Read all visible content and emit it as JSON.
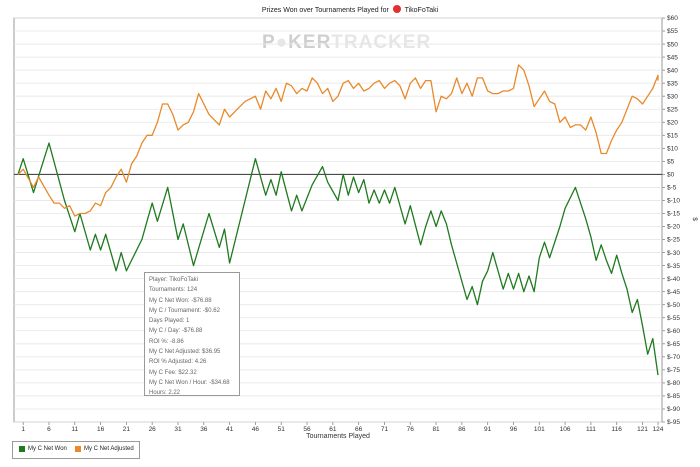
{
  "title": {
    "prefix": "Prizes Won over Tournaments Played for",
    "player": "TikoFoTaki"
  },
  "watermark": {
    "part1": "P",
    "part2": "KER",
    "part3": "TRACKER"
  },
  "tooltip": [
    "Player: TikoFoTaki",
    "Tournaments: 124",
    "My C Net Won: -$76.88",
    "My C / Tournament: -$0.62",
    "Days Played: 1",
    "My C / Day: -$76.88",
    "ROI %: -8.86",
    "My C Net Adjusted: $36.95",
    "ROI % Adjusted: 4.26",
    "My C Fee: $22.32",
    "My C Net Won / Hour: -$34.68",
    "Hours: 2.22"
  ],
  "legend": [
    {
      "label": "My C Net Won",
      "color": "#1f7a1f"
    },
    {
      "label": "My C Net Adjusted",
      "color": "#e8892b"
    }
  ],
  "chart_data": {
    "type": "line",
    "title": "Prizes Won over Tournaments Played for TikoFoTaki",
    "xlabel": "Tournaments Played",
    "ylabel": "$",
    "xlim": [
      0,
      124
    ],
    "ylim": [
      -95,
      60
    ],
    "x_ticks": [
      1,
      6,
      11,
      16,
      21,
      26,
      31,
      36,
      41,
      46,
      51,
      56,
      61,
      66,
      71,
      76,
      81,
      86,
      91,
      96,
      101,
      106,
      111,
      116,
      121,
      124
    ],
    "y_ticks": [
      "$60",
      "$55",
      "$50",
      "$45",
      "$40",
      "$35",
      "$30",
      "$25",
      "$20",
      "$15",
      "$10",
      "$5",
      "$0",
      "$-5",
      "$-10",
      "$-15",
      "$-20",
      "$-25",
      "$-30",
      "$-35",
      "$-40",
      "$-45",
      "$-50",
      "$-55",
      "$-60",
      "$-65",
      "$-70",
      "$-75",
      "$-80",
      "$-85",
      "$-90",
      "$-95"
    ],
    "y_tick_values": [
      60,
      55,
      50,
      45,
      40,
      35,
      30,
      25,
      20,
      15,
      10,
      5,
      0,
      -5,
      -10,
      -15,
      -20,
      -25,
      -30,
      -35,
      -40,
      -45,
      -50,
      -55,
      -60,
      -65,
      -70,
      -75,
      -80,
      -85,
      -90,
      -95
    ],
    "zero_line": true,
    "grid": "horizontal",
    "series": [
      {
        "name": "My C Net Won",
        "color": "#1f7a1f",
        "points": [
          [
            0,
            0
          ],
          [
            1,
            6
          ],
          [
            3,
            -7
          ],
          [
            6,
            12
          ],
          [
            9,
            -10
          ],
          [
            11,
            -22
          ],
          [
            12,
            -15
          ],
          [
            14,
            -29
          ],
          [
            15,
            -23
          ],
          [
            16,
            -29
          ],
          [
            17,
            -23
          ],
          [
            19,
            -37
          ],
          [
            20,
            -30
          ],
          [
            21,
            -37
          ],
          [
            22,
            -33
          ],
          [
            24,
            -25
          ],
          [
            25,
            -18
          ],
          [
            26,
            -11
          ],
          [
            27,
            -18
          ],
          [
            29,
            -5
          ],
          [
            31,
            -25
          ],
          [
            32,
            -19
          ],
          [
            34,
            -35
          ],
          [
            37,
            -15
          ],
          [
            39,
            -28
          ],
          [
            40,
            -21
          ],
          [
            41,
            -34
          ],
          [
            46,
            6
          ],
          [
            48,
            -8
          ],
          [
            49,
            -2
          ],
          [
            50,
            -8
          ],
          [
            51,
            1
          ],
          [
            53,
            -14
          ],
          [
            54,
            -8
          ],
          [
            55,
            -14
          ],
          [
            57,
            -4
          ],
          [
            59,
            3
          ],
          [
            60,
            -3
          ],
          [
            62,
            -10
          ],
          [
            63,
            0
          ],
          [
            64,
            -8
          ],
          [
            65,
            -1
          ],
          [
            66,
            -7
          ],
          [
            67,
            -2
          ],
          [
            68,
            -11
          ],
          [
            69,
            -6
          ],
          [
            70,
            -11
          ],
          [
            71,
            -6
          ],
          [
            72,
            -11
          ],
          [
            73,
            -5
          ],
          [
            75,
            -19
          ],
          [
            76,
            -12
          ],
          [
            78,
            -27
          ],
          [
            79,
            -20
          ],
          [
            80,
            -14
          ],
          [
            81,
            -20
          ],
          [
            82,
            -14
          ],
          [
            83,
            -19
          ],
          [
            84,
            -27
          ],
          [
            87,
            -48
          ],
          [
            88,
            -43
          ],
          [
            89,
            -50
          ],
          [
            90,
            -41
          ],
          [
            91,
            -37
          ],
          [
            92,
            -30
          ],
          [
            94,
            -44
          ],
          [
            95,
            -38
          ],
          [
            96,
            -44
          ],
          [
            97,
            -38
          ],
          [
            98,
            -45
          ],
          [
            99,
            -39
          ],
          [
            100,
            -45
          ],
          [
            101,
            -32
          ],
          [
            102,
            -26
          ],
          [
            103,
            -32
          ],
          [
            105,
            -20
          ],
          [
            106,
            -13
          ],
          [
            108,
            -5
          ],
          [
            110,
            -17
          ],
          [
            111,
            -24
          ],
          [
            112,
            -33
          ],
          [
            113,
            -27
          ],
          [
            114,
            -33
          ],
          [
            115,
            -38
          ],
          [
            116,
            -31
          ],
          [
            117,
            -38
          ],
          [
            118,
            -44
          ],
          [
            119,
            -53
          ],
          [
            120,
            -48
          ],
          [
            121,
            -58
          ],
          [
            122,
            -69
          ],
          [
            123,
            -63
          ],
          [
            124,
            -77
          ]
        ]
      },
      {
        "name": "My C Net Adjusted",
        "color": "#e8892b",
        "points": [
          [
            0,
            0
          ],
          [
            1,
            2
          ],
          [
            3,
            -5
          ],
          [
            4,
            -1
          ],
          [
            6,
            -8
          ],
          [
            7,
            -11
          ],
          [
            8,
            -11
          ],
          [
            9,
            -13
          ],
          [
            10,
            -12
          ],
          [
            11,
            -16
          ],
          [
            12,
            -15
          ],
          [
            13,
            -15
          ],
          [
            14,
            -14
          ],
          [
            15,
            -11
          ],
          [
            16,
            -12
          ],
          [
            17,
            -7
          ],
          [
            18,
            -5
          ],
          [
            19,
            -1
          ],
          [
            20,
            2
          ],
          [
            21,
            -3
          ],
          [
            22,
            4
          ],
          [
            23,
            7
          ],
          [
            24,
            12
          ],
          [
            25,
            15
          ],
          [
            26,
            15
          ],
          [
            27,
            20
          ],
          [
            28,
            27
          ],
          [
            29,
            27
          ],
          [
            30,
            23
          ],
          [
            31,
            17
          ],
          [
            32,
            19
          ],
          [
            33,
            20
          ],
          [
            34,
            24
          ],
          [
            35,
            31
          ],
          [
            36,
            27
          ],
          [
            37,
            23
          ],
          [
            38,
            21
          ],
          [
            39,
            19
          ],
          [
            40,
            25
          ],
          [
            41,
            22
          ],
          [
            42,
            24
          ],
          [
            43,
            26
          ],
          [
            44,
            28
          ],
          [
            45,
            29
          ],
          [
            46,
            30
          ],
          [
            47,
            25
          ],
          [
            48,
            32
          ],
          [
            49,
            29
          ],
          [
            50,
            33
          ],
          [
            51,
            28
          ],
          [
            52,
            35
          ],
          [
            53,
            34
          ],
          [
            54,
            31
          ],
          [
            55,
            33
          ],
          [
            56,
            32
          ],
          [
            57,
            37
          ],
          [
            58,
            35
          ],
          [
            59,
            31
          ],
          [
            60,
            33
          ],
          [
            61,
            28
          ],
          [
            62,
            30
          ],
          [
            63,
            35
          ],
          [
            64,
            36
          ],
          [
            65,
            33
          ],
          [
            66,
            35
          ],
          [
            67,
            32
          ],
          [
            68,
            33
          ],
          [
            69,
            35
          ],
          [
            70,
            36
          ],
          [
            71,
            33
          ],
          [
            72,
            35
          ],
          [
            73,
            36
          ],
          [
            74,
            34
          ],
          [
            75,
            29
          ],
          [
            76,
            35
          ],
          [
            77,
            37
          ],
          [
            78,
            33
          ],
          [
            79,
            36
          ],
          [
            80,
            36
          ],
          [
            81,
            24
          ],
          [
            82,
            30
          ],
          [
            83,
            29
          ],
          [
            84,
            31
          ],
          [
            85,
            37
          ],
          [
            86,
            31
          ],
          [
            87,
            35
          ],
          [
            88,
            30
          ],
          [
            89,
            37
          ],
          [
            90,
            37
          ],
          [
            91,
            32
          ],
          [
            92,
            31
          ],
          [
            93,
            31
          ],
          [
            94,
            32
          ],
          [
            95,
            32
          ],
          [
            96,
            33
          ],
          [
            97,
            42
          ],
          [
            98,
            40
          ],
          [
            99,
            34
          ],
          [
            100,
            26
          ],
          [
            101,
            29
          ],
          [
            102,
            32
          ],
          [
            103,
            28
          ],
          [
            104,
            27
          ],
          [
            105,
            20
          ],
          [
            106,
            22
          ],
          [
            107,
            18
          ],
          [
            108,
            19
          ],
          [
            109,
            19
          ],
          [
            110,
            17
          ],
          [
            111,
            22
          ],
          [
            112,
            16
          ],
          [
            113,
            8
          ],
          [
            114,
            8
          ],
          [
            115,
            13
          ],
          [
            116,
            17
          ],
          [
            117,
            20
          ],
          [
            118,
            25
          ],
          [
            119,
            30
          ],
          [
            120,
            29
          ],
          [
            121,
            27
          ],
          [
            122,
            30
          ],
          [
            123,
            33
          ],
          [
            124,
            38
          ],
          [
            124,
            36
          ]
        ]
      }
    ]
  }
}
